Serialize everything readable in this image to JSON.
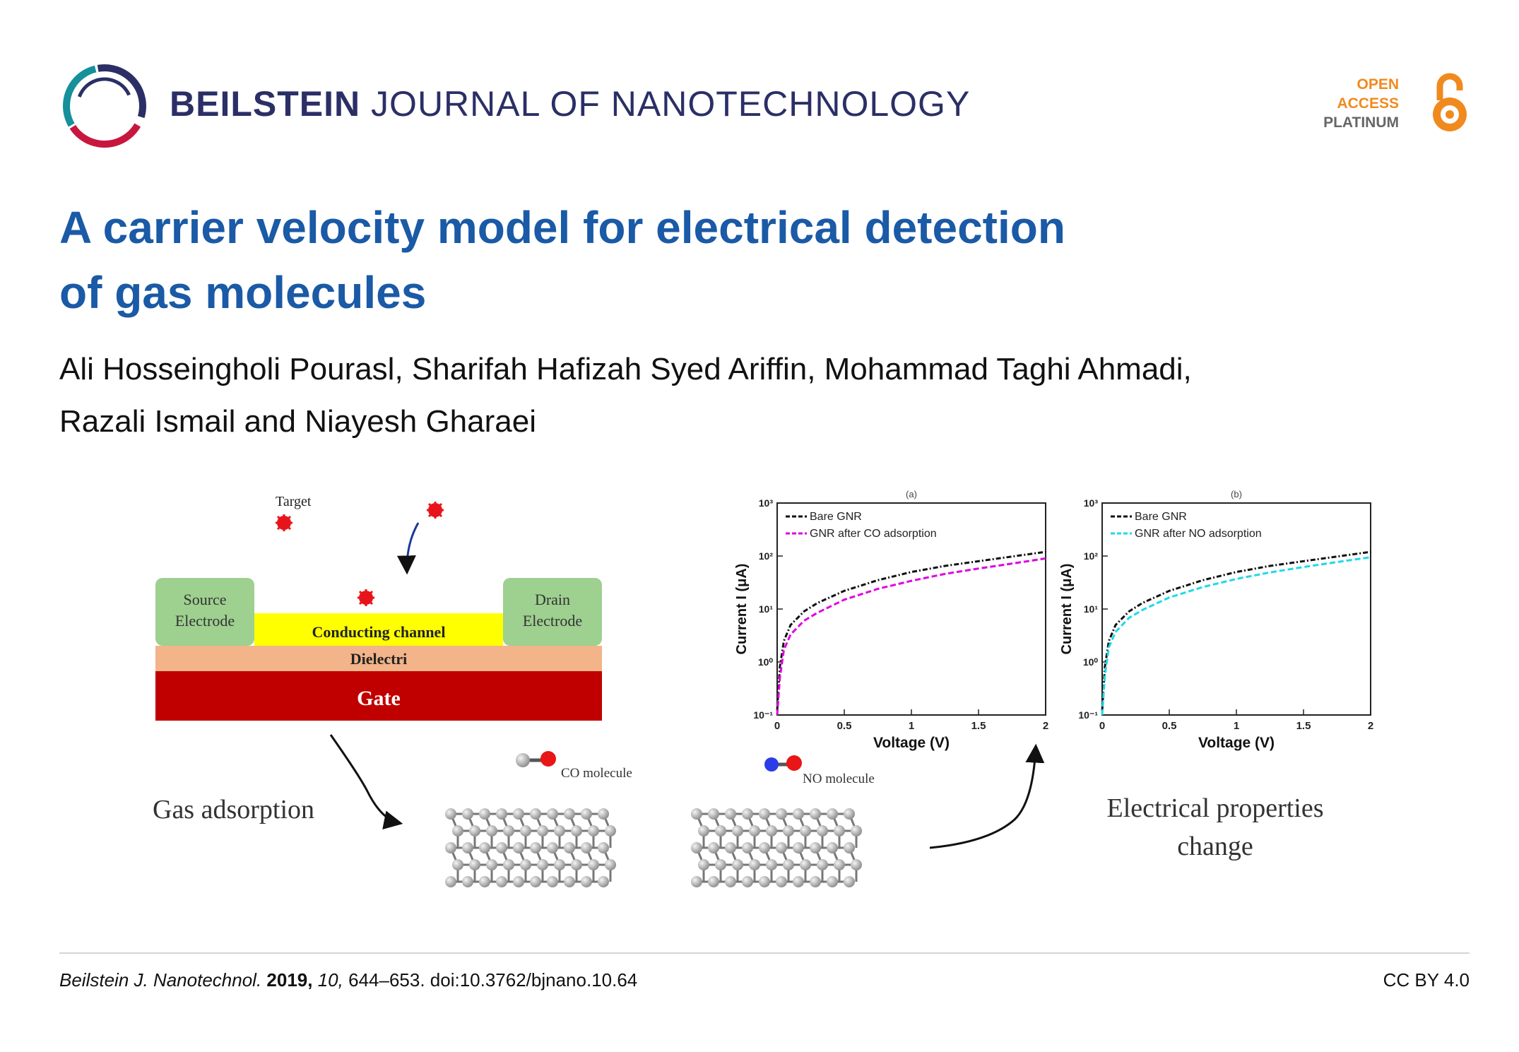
{
  "header": {
    "journal_bold": "BEILSTEIN",
    "journal_rest": "JOURNAL OF NANOTECHNOLOGY",
    "logo_icon": "beilstein-ring-logo",
    "oa_line1": "OPEN",
    "oa_line2": "ACCESS",
    "oa_line3": "PLATINUM",
    "oa_icon": "open-access-lock-icon",
    "colors": {
      "journal": "#2b2f66",
      "oa_orange": "#f08a1f",
      "title": "#1a5aa6"
    }
  },
  "article": {
    "title_line1": "A carrier velocity model for electrical detection",
    "title_line2": "of gas molecules",
    "authors_line1": "Ali Hosseingholi Pourasl, Sharifah Hafizah Syed Ariffin, Mohammad Taghi Ahmadi,",
    "authors_line2": "Razali Ismail and Niayesh Gharaei"
  },
  "figure": {
    "device": {
      "target": "Target",
      "source_1": "Source",
      "source_2": "Electrode",
      "drain_1": "Drain",
      "drain_2": "Electrode",
      "channel": "Conducting channel",
      "dielectric": "Dielectri",
      "gate": "Gate"
    },
    "labels": {
      "gas_adsorption": "Gas adsorption",
      "co_molecule": "CO molecule",
      "no_molecule": "NO molecule",
      "electrical_1": "Electrical properties",
      "electrical_2": "change"
    },
    "chart_data": [
      {
        "type": "line",
        "panel": "(a)",
        "xlabel": "Voltage (V)",
        "ylabel": "Current I (μA)",
        "xlim": [
          0,
          2
        ],
        "ylim": [
          0.1,
          1000
        ],
        "y_scale": "log",
        "xticks": [
          "0",
          "0.5",
          "1",
          "1.5",
          "2"
        ],
        "yticks": [
          "10⁻¹",
          "10⁰",
          "10¹",
          "10²",
          "10³"
        ],
        "legend": "top-left",
        "x": [
          0.0,
          0.02,
          0.05,
          0.1,
          0.2,
          0.3,
          0.5,
          0.75,
          1.0,
          1.25,
          1.5,
          1.75,
          2.0
        ],
        "series": [
          {
            "name": "Bare GNR",
            "color": "#111111",
            "values": [
              0.12,
              0.8,
              2.5,
              5,
              9,
              13,
              22,
              35,
              50,
              65,
              80,
              98,
              120
            ]
          },
          {
            "name": "GNR after CO adsorption",
            "color": "#e000e0",
            "values": [
              0.1,
              0.5,
              1.7,
              3.3,
              6,
              8.5,
              15,
              24,
              34,
              46,
              58,
              72,
              90
            ]
          }
        ]
      },
      {
        "type": "line",
        "panel": "(b)",
        "xlabel": "Voltage (V)",
        "ylabel": "Current I (μA)",
        "xlim": [
          0,
          2
        ],
        "ylim": [
          0.1,
          1000
        ],
        "y_scale": "log",
        "xticks": [
          "0",
          "0.5",
          "1",
          "1.5",
          "2"
        ],
        "yticks": [
          "10⁻¹",
          "10⁰",
          "10¹",
          "10²",
          "10³"
        ],
        "legend": "top-left",
        "x": [
          0.0,
          0.02,
          0.05,
          0.1,
          0.2,
          0.3,
          0.5,
          0.75,
          1.0,
          1.25,
          1.5,
          1.75,
          2.0
        ],
        "series": [
          {
            "name": "Bare GNR",
            "color": "#111111",
            "values": [
              0.12,
              0.8,
              2.5,
              5,
              9,
              13,
              22,
              35,
              50,
              65,
              80,
              98,
              120
            ]
          },
          {
            "name": "GNR after NO adsorption",
            "color": "#20d8e8",
            "values": [
              0.1,
              0.55,
              1.9,
              3.7,
              6.8,
              9.6,
              16.5,
              26,
              37,
              49,
              62,
              77,
              95
            ]
          }
        ]
      }
    ]
  },
  "footer": {
    "journal_abbr": "Beilstein J. Nanotechnol.",
    "year": "2019,",
    "volume": "10,",
    "pages_doi": "644–653. doi:10.3762/bjnano.10.64",
    "license": "CC BY 4.0"
  }
}
